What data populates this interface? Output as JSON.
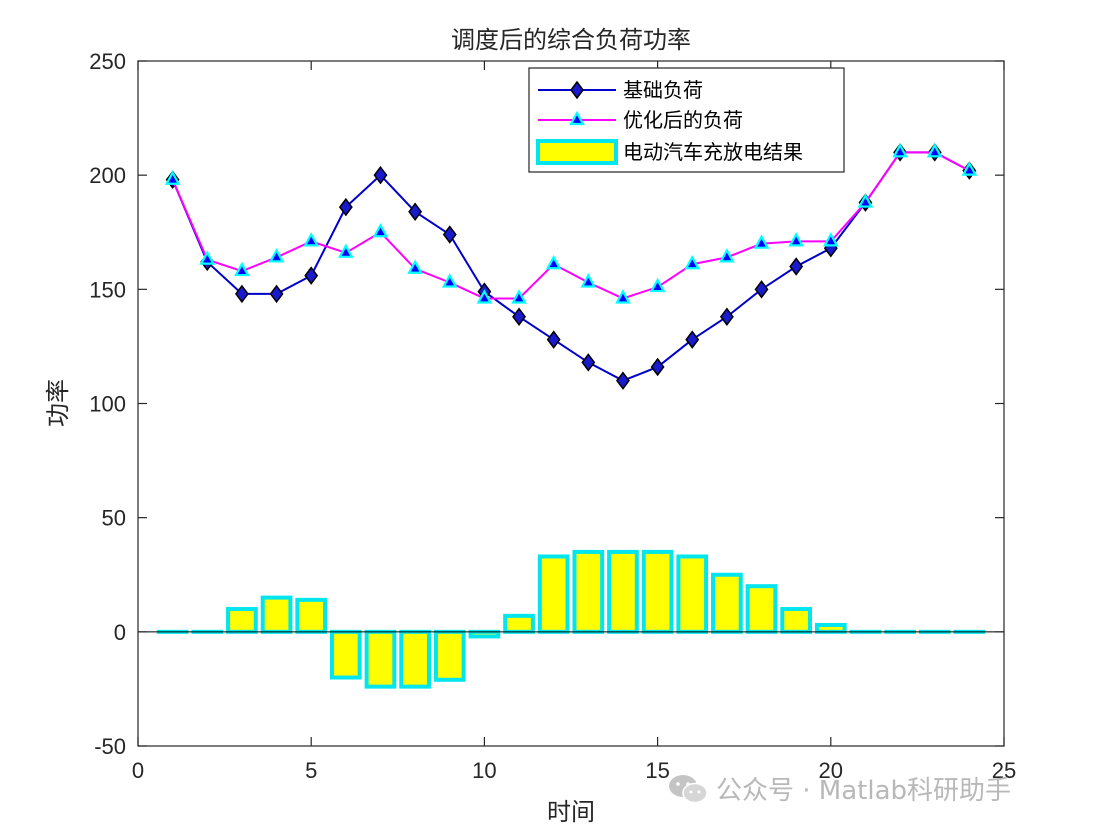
{
  "chart_data": {
    "type": "bar+line",
    "title": "调度后的综合负荷功率",
    "xlabel": "时间",
    "ylabel": "功率",
    "xlim": [
      0,
      25
    ],
    "ylim": [
      -50,
      250
    ],
    "xticks": [
      0,
      5,
      10,
      15,
      20,
      25
    ],
    "yticks": [
      -50,
      0,
      50,
      100,
      150,
      200,
      250
    ],
    "x": [
      1,
      2,
      3,
      4,
      5,
      6,
      7,
      8,
      9,
      10,
      11,
      12,
      13,
      14,
      15,
      16,
      17,
      18,
      19,
      20,
      21,
      22,
      23,
      24
    ],
    "series": [
      {
        "name": "基础负荷",
        "type": "line",
        "marker": "diamond",
        "color": "#0000CD",
        "marker_fill": "#1A1ACD",
        "values": [
          198,
          162,
          148,
          148,
          156,
          186,
          200,
          184,
          174,
          149,
          138,
          128,
          118,
          110,
          116,
          128,
          138,
          150,
          160,
          168,
          188,
          210,
          210,
          202
        ]
      },
      {
        "name": "优化后的负荷",
        "type": "line",
        "marker": "triangle",
        "color": "#FF00FF",
        "marker_fill": "#0000FF",
        "marker_edge": "#00FFFF",
        "values": [
          198,
          163,
          158,
          164,
          171,
          166,
          175,
          159,
          153,
          146,
          146,
          161,
          153,
          146,
          151,
          161,
          164,
          170,
          171,
          171,
          188,
          210,
          210,
          202
        ]
      },
      {
        "name": "电动汽车充放电结果",
        "type": "bar",
        "color": "#FFFF00",
        "edge": "#00E5EE",
        "values": [
          0,
          0,
          10,
          15,
          14,
          -20,
          -24,
          -24,
          -21,
          -2,
          7,
          33,
          35,
          35,
          35,
          33,
          25,
          20,
          10,
          3,
          0,
          0,
          0,
          0
        ]
      }
    ],
    "legend_position": "top-center"
  },
  "watermark": {
    "text": "公众号 · Matlab科研助手",
    "icon": "wechat-icon"
  }
}
